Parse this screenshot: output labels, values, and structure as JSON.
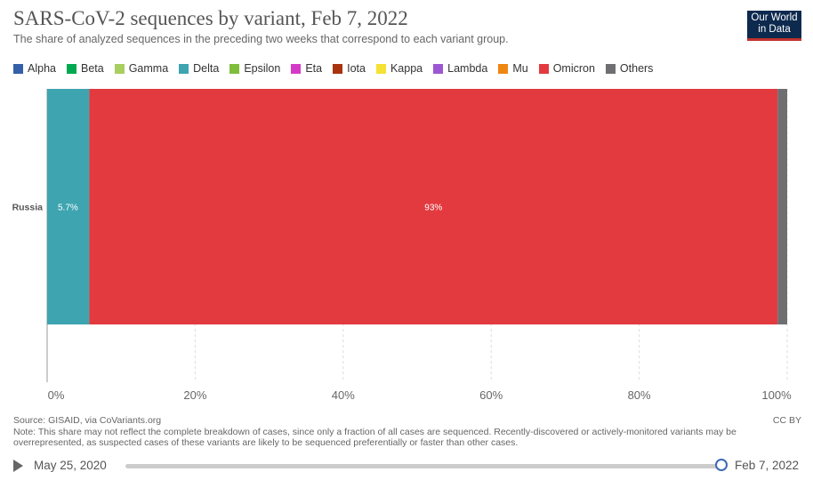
{
  "title": "SARS-CoV-2 sequences by variant, Feb 7, 2022",
  "subtitle": "The share of analyzed sequences in the preceding two weeks that correspond to each variant group.",
  "logo": {
    "line1": "Our World",
    "line2": "in Data"
  },
  "legend": [
    {
      "label": "Alpha",
      "color": "#3360a9"
    },
    {
      "label": "Beta",
      "color": "#00a94f"
    },
    {
      "label": "Gamma",
      "color": "#a8cf60"
    },
    {
      "label": "Delta",
      "color": "#3ea4b0"
    },
    {
      "label": "Epsilon",
      "color": "#7fbe3b"
    },
    {
      "label": "Eta",
      "color": "#d43ac7"
    },
    {
      "label": "Iota",
      "color": "#a8330f"
    },
    {
      "label": "Kappa",
      "color": "#f5e235"
    },
    {
      "label": "Lambda",
      "color": "#9b57d3"
    },
    {
      "label": "Mu",
      "color": "#f08612"
    },
    {
      "label": "Omicron",
      "color": "#e23a3f"
    },
    {
      "label": "Others",
      "color": "#6f6e70"
    }
  ],
  "chart_data": {
    "type": "bar",
    "orientation": "horizontal",
    "stacked": true,
    "categories": [
      "Russia"
    ],
    "series": [
      {
        "name": "Delta",
        "values": [
          5.7
        ],
        "color": "#3ea4b0",
        "label": "5.7%"
      },
      {
        "name": "Omicron",
        "values": [
          93
        ],
        "color": "#e23a3f",
        "label": "93%"
      },
      {
        "name": "Others",
        "values": [
          1.3
        ],
        "color": "#6f6e70",
        "label": ""
      }
    ],
    "xlim": [
      0,
      100
    ],
    "xticks": [
      "0%",
      "20%",
      "40%",
      "60%",
      "80%",
      "100%"
    ],
    "grid": true
  },
  "footer": {
    "source": "Source: GISAID, via CoVariants.org",
    "note_line1": "Note: This share may not reflect the complete breakdown of cases, since only a fraction of all cases are sequenced. Recently-discovered or actively-monitored variants may be",
    "note_line2": "overrepresented, as suspected cases of these variants are likely to be sequenced preferentially or faster than other cases.",
    "license": "CC BY"
  },
  "timeline": {
    "start": "May 25, 2020",
    "end": "Feb 7, 2022"
  }
}
